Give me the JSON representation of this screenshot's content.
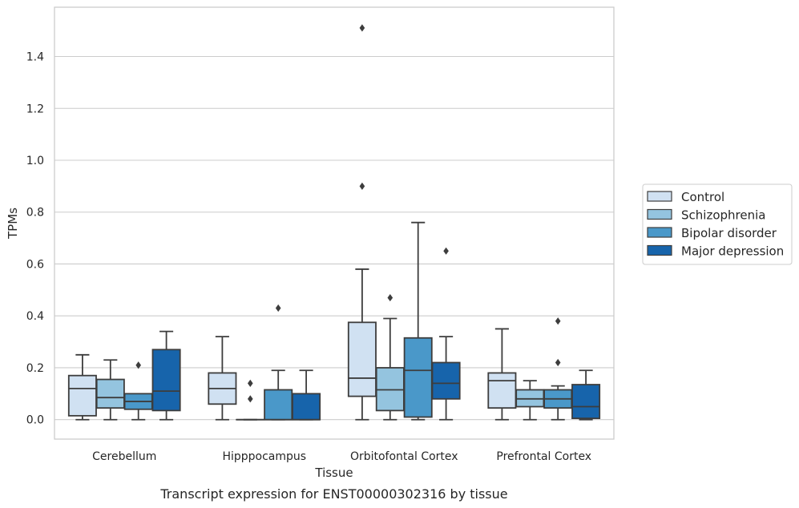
{
  "caption": "Transcript expression for ENST00000302316 by tissue",
  "chart_data": {
    "type": "box",
    "xlabel": "Tissue",
    "ylabel": "TPMs",
    "ylim": [
      -0.075,
      1.59
    ],
    "yticks": [
      "0.0",
      "0.2",
      "0.4",
      "0.6",
      "0.8",
      "1.0",
      "1.2",
      "1.4"
    ],
    "grid": true,
    "legend_position": "right",
    "categories": [
      "Cerebellum",
      "Hipppocampus",
      "Orbitofontal Cortex",
      "Prefrontal Cortex"
    ],
    "series": [
      {
        "name": "Control",
        "color": "#d0e1f2",
        "boxes": [
          {
            "whislo": 0.0,
            "q1": 0.015,
            "med": 0.12,
            "q3": 0.17,
            "whishi": 0.25,
            "fliers": []
          },
          {
            "whislo": 0.0,
            "q1": 0.06,
            "med": 0.12,
            "q3": 0.18,
            "whishi": 0.32,
            "fliers": []
          },
          {
            "whislo": 0.0,
            "q1": 0.09,
            "med": 0.16,
            "q3": 0.375,
            "whishi": 0.58,
            "fliers": [
              0.9,
              1.51
            ]
          },
          {
            "whislo": 0.0,
            "q1": 0.045,
            "med": 0.15,
            "q3": 0.18,
            "whishi": 0.35,
            "fliers": []
          }
        ]
      },
      {
        "name": "Schizophrenia",
        "color": "#94c4df",
        "boxes": [
          {
            "whislo": 0.0,
            "q1": 0.045,
            "med": 0.085,
            "q3": 0.155,
            "whishi": 0.23,
            "fliers": []
          },
          {
            "whislo": 0.0,
            "q1": 0.0,
            "med": 0.0,
            "q3": 0.0,
            "whishi": 0.0,
            "fliers": [
              0.08,
              0.14
            ]
          },
          {
            "whislo": 0.0,
            "q1": 0.035,
            "med": 0.115,
            "q3": 0.2,
            "whishi": 0.39,
            "fliers": [
              0.47
            ]
          },
          {
            "whislo": 0.0,
            "q1": 0.05,
            "med": 0.08,
            "q3": 0.115,
            "whishi": 0.15,
            "fliers": []
          }
        ]
      },
      {
        "name": "Bipolar disorder",
        "color": "#4a98c9",
        "boxes": [
          {
            "whislo": 0.0,
            "q1": 0.04,
            "med": 0.07,
            "q3": 0.1,
            "whishi": 0.1,
            "fliers": [
              0.21
            ]
          },
          {
            "whislo": 0.0,
            "q1": 0.0,
            "med": 0.0,
            "q3": 0.115,
            "whishi": 0.19,
            "fliers": [
              0.43
            ]
          },
          {
            "whislo": 0.0,
            "q1": 0.01,
            "med": 0.19,
            "q3": 0.315,
            "whishi": 0.76,
            "fliers": []
          },
          {
            "whislo": 0.0,
            "q1": 0.045,
            "med": 0.08,
            "q3": 0.115,
            "whishi": 0.13,
            "fliers": [
              0.22,
              0.38
            ]
          }
        ]
      },
      {
        "name": "Major depression",
        "color": "#1764ab",
        "boxes": [
          {
            "whislo": 0.0,
            "q1": 0.035,
            "med": 0.11,
            "q3": 0.27,
            "whishi": 0.34,
            "fliers": []
          },
          {
            "whislo": 0.0,
            "q1": 0.0,
            "med": 0.0,
            "q3": 0.1,
            "whishi": 0.19,
            "fliers": []
          },
          {
            "whislo": 0.0,
            "q1": 0.08,
            "med": 0.14,
            "q3": 0.22,
            "whishi": 0.32,
            "fliers": [
              0.65
            ]
          },
          {
            "whislo": 0.0,
            "q1": 0.005,
            "med": 0.05,
            "q3": 0.135,
            "whishi": 0.19,
            "fliers": []
          }
        ]
      }
    ]
  }
}
